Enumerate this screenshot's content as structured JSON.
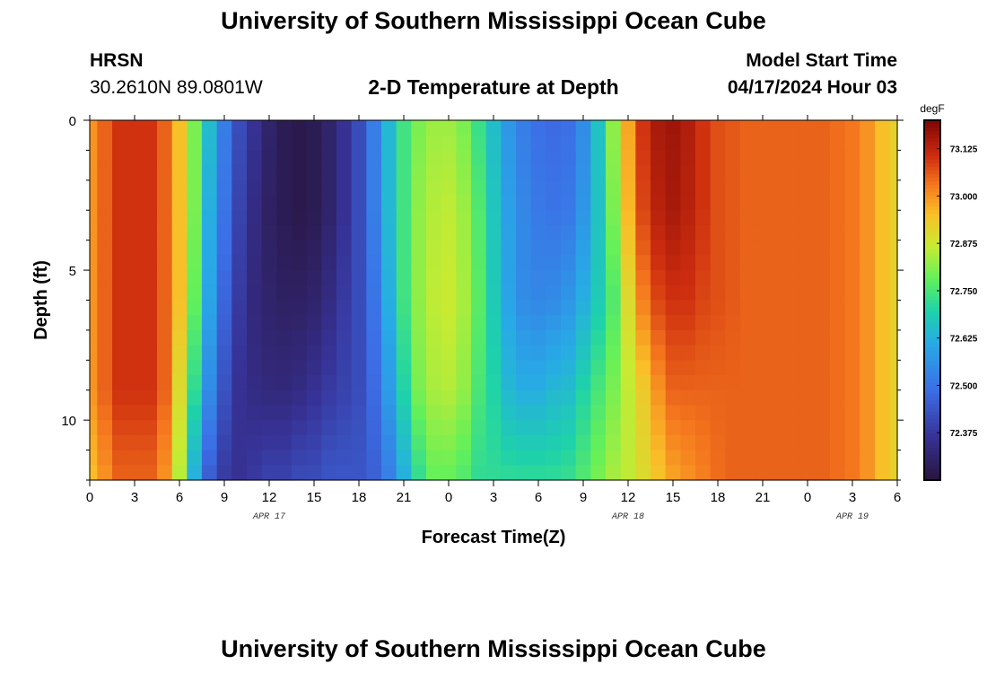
{
  "header": {
    "title": "University of Southern Mississippi Ocean Cube",
    "station": "HRSN",
    "coords": "30.2610N  89.0801W",
    "subtitle": "2-D Temperature at Depth",
    "start_label": "Model Start Time",
    "start_value": "04/17/2024 Hour 03",
    "footer_title": "University of Southern Mississippi Ocean Cube"
  },
  "chart_data": {
    "type": "heatmap",
    "title": "2-D Temperature at Depth",
    "xlabel": "Forecast Time(Z)",
    "ylabel": "Depth (ft)",
    "x_hours_range": [
      0,
      54
    ],
    "x_tick_labels": [
      "0",
      "3",
      "6",
      "9",
      "12",
      "15",
      "18",
      "21",
      "0",
      "3",
      "6",
      "9",
      "12",
      "15",
      "18",
      "21",
      "0",
      "3",
      "6"
    ],
    "date_labels": [
      {
        "label": "APR 17",
        "hour": 12
      },
      {
        "label": "APR 18",
        "hour": 36
      },
      {
        "label": "APR 19",
        "hour": 51
      }
    ],
    "y_range": [
      0,
      12
    ],
    "y_tick_labels": [
      "0",
      "5",
      "10"
    ],
    "y_ticks": [
      0,
      5,
      10
    ],
    "colorbar": {
      "unit": "degF",
      "range": [
        72.25,
        73.2
      ],
      "ticks": [
        72.375,
        72.5,
        72.625,
        72.75,
        72.875,
        73.0,
        73.125
      ],
      "tick_labels": [
        "72.375",
        "72.500",
        "72.625",
        "72.750",
        "72.875",
        "73.000",
        "73.125"
      ]
    },
    "columns_hours": [
      0,
      1,
      2,
      3,
      4,
      5,
      6,
      7,
      8,
      9,
      10,
      11,
      12,
      13,
      14,
      15,
      16,
      17,
      18,
      19,
      20,
      21,
      22,
      23,
      24,
      25,
      26,
      27,
      28,
      29,
      30,
      31,
      32,
      33,
      34,
      35,
      36,
      37,
      38,
      39,
      40,
      41,
      42,
      43,
      44,
      45,
      46,
      47,
      48,
      49,
      50,
      51,
      52,
      53,
      54
    ],
    "profile_depths_ft": [
      0,
      3,
      6,
      9,
      12
    ],
    "profiles_degF": [
      [
        73.0,
        73.0,
        73.0,
        73.0,
        72.95
      ],
      [
        73.05,
        73.05,
        73.05,
        73.05,
        73.0
      ],
      [
        73.1,
        73.1,
        73.1,
        73.1,
        73.05
      ],
      [
        73.1,
        73.1,
        73.1,
        73.1,
        73.05
      ],
      [
        73.1,
        73.1,
        73.1,
        73.1,
        73.05
      ],
      [
        73.05,
        73.05,
        73.05,
        73.05,
        73.0
      ],
      [
        72.95,
        72.95,
        72.95,
        72.9,
        72.85
      ],
      [
        72.8,
        72.8,
        72.78,
        72.72,
        72.62
      ],
      [
        72.65,
        72.62,
        72.6,
        72.55,
        72.45
      ],
      [
        72.52,
        72.5,
        72.47,
        72.43,
        72.38
      ],
      [
        72.42,
        72.4,
        72.38,
        72.36,
        72.36
      ],
      [
        72.36,
        72.34,
        72.33,
        72.34,
        72.38
      ],
      [
        72.31,
        72.3,
        72.31,
        72.33,
        72.4
      ],
      [
        72.28,
        72.28,
        72.3,
        72.33,
        72.4
      ],
      [
        72.27,
        72.27,
        72.3,
        72.34,
        72.42
      ],
      [
        72.28,
        72.28,
        72.31,
        72.36,
        72.42
      ],
      [
        72.31,
        72.31,
        72.34,
        72.38,
        72.44
      ],
      [
        72.36,
        72.36,
        72.38,
        72.4,
        72.44
      ],
      [
        72.42,
        72.42,
        72.42,
        72.42,
        72.44
      ],
      [
        72.52,
        72.52,
        72.5,
        72.48,
        72.46
      ],
      [
        72.64,
        72.64,
        72.62,
        72.58,
        72.52
      ],
      [
        72.74,
        72.74,
        72.74,
        72.7,
        72.62
      ],
      [
        72.8,
        72.82,
        72.82,
        72.8,
        72.72
      ],
      [
        72.83,
        72.85,
        72.86,
        72.84,
        72.78
      ],
      [
        72.83,
        72.86,
        72.87,
        72.85,
        72.78
      ],
      [
        72.8,
        72.83,
        72.84,
        72.82,
        72.76
      ],
      [
        72.73,
        72.76,
        72.77,
        72.75,
        72.72
      ],
      [
        72.65,
        72.67,
        72.68,
        72.7,
        72.72
      ],
      [
        72.57,
        72.59,
        72.6,
        72.64,
        72.72
      ],
      [
        72.52,
        72.54,
        72.55,
        72.62,
        72.72
      ],
      [
        72.49,
        72.51,
        72.54,
        72.62,
        72.72
      ],
      [
        72.48,
        72.5,
        72.55,
        72.64,
        72.72
      ],
      [
        72.49,
        72.51,
        72.57,
        72.65,
        72.73
      ],
      [
        72.55,
        72.57,
        72.62,
        72.7,
        72.76
      ],
      [
        72.66,
        72.66,
        72.68,
        72.75,
        72.8
      ],
      [
        72.82,
        72.8,
        72.76,
        72.8,
        72.84
      ],
      [
        72.98,
        72.96,
        72.9,
        72.86,
        72.86
      ],
      [
        73.1,
        73.08,
        73.02,
        72.93,
        72.9
      ],
      [
        73.15,
        73.13,
        73.08,
        73.0,
        72.94
      ],
      [
        73.16,
        73.15,
        73.1,
        73.05,
        72.98
      ],
      [
        73.14,
        73.13,
        73.1,
        73.05,
        73.0
      ],
      [
        73.1,
        73.1,
        73.08,
        73.05,
        73.02
      ],
      [
        73.07,
        73.07,
        73.07,
        73.05,
        73.04
      ],
      [
        73.06,
        73.06,
        73.06,
        73.05,
        73.05
      ],
      [
        73.05,
        73.05,
        73.05,
        73.05,
        73.05
      ],
      [
        73.05,
        73.05,
        73.05,
        73.05,
        73.05
      ],
      [
        73.05,
        73.05,
        73.05,
        73.05,
        73.05
      ],
      [
        73.05,
        73.05,
        73.05,
        73.05,
        73.05
      ],
      [
        73.05,
        73.05,
        73.05,
        73.05,
        73.05
      ],
      [
        73.05,
        73.05,
        73.05,
        73.05,
        73.05
      ],
      [
        73.04,
        73.04,
        73.04,
        73.04,
        73.04
      ],
      [
        73.03,
        73.03,
        73.03,
        73.03,
        73.03
      ],
      [
        73.0,
        73.0,
        73.0,
        73.0,
        73.0
      ],
      [
        72.95,
        72.95,
        72.95,
        72.95,
        72.95
      ],
      [
        72.92,
        72.92,
        72.92,
        72.92,
        72.92
      ]
    ]
  }
}
